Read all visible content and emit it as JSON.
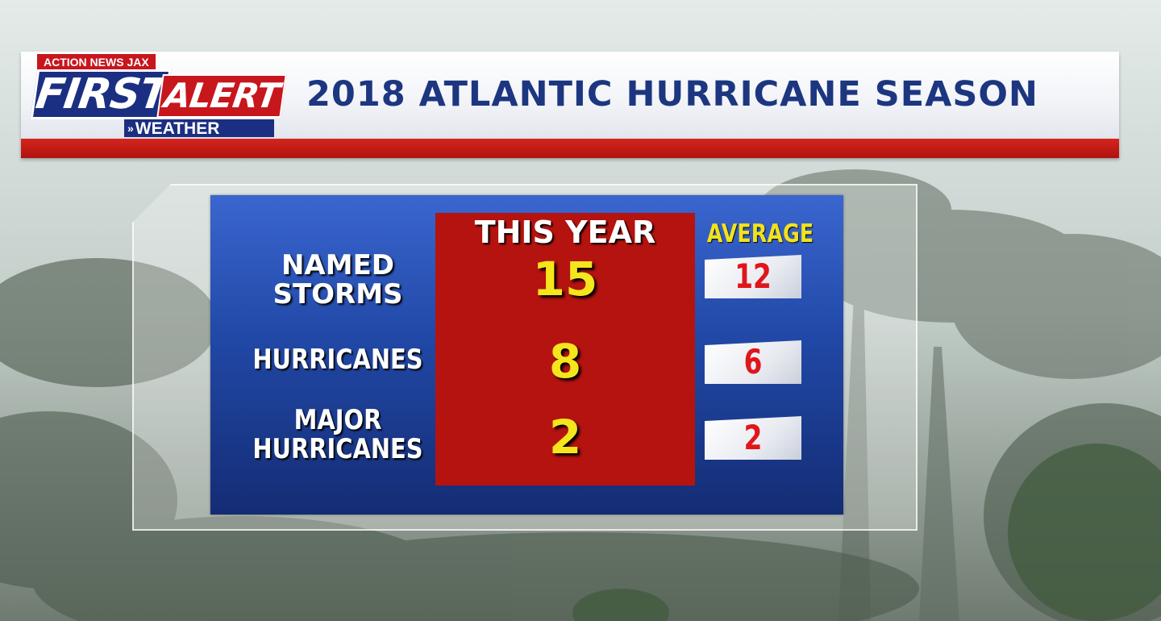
{
  "header": {
    "network": "ACTION NEWS JAX",
    "logo_first": "FIRST",
    "logo_alert": "ALERT",
    "logo_weather": "WEATHER",
    "title": "2018 ATLANTIC HURRICANE SEASON"
  },
  "table": {
    "col_this_year": "THIS YEAR",
    "col_average": "AVERAGE",
    "rows": [
      {
        "label_line1": "NAMED",
        "label_line2": "STORMS",
        "this_year": "15",
        "average": "12"
      },
      {
        "label_line1": "HURRICANES",
        "label_line2": "",
        "this_year": "8",
        "average": "6"
      },
      {
        "label_line1": "MAJOR",
        "label_line2": "HURRICANES",
        "this_year": "2",
        "average": "2"
      }
    ]
  },
  "colors": {
    "brand_blue": "#1b2f82",
    "brand_red": "#c8161d",
    "this_year_value": "#f5e51c",
    "average_value": "#e0161b",
    "average_header": "#f2e21d"
  }
}
